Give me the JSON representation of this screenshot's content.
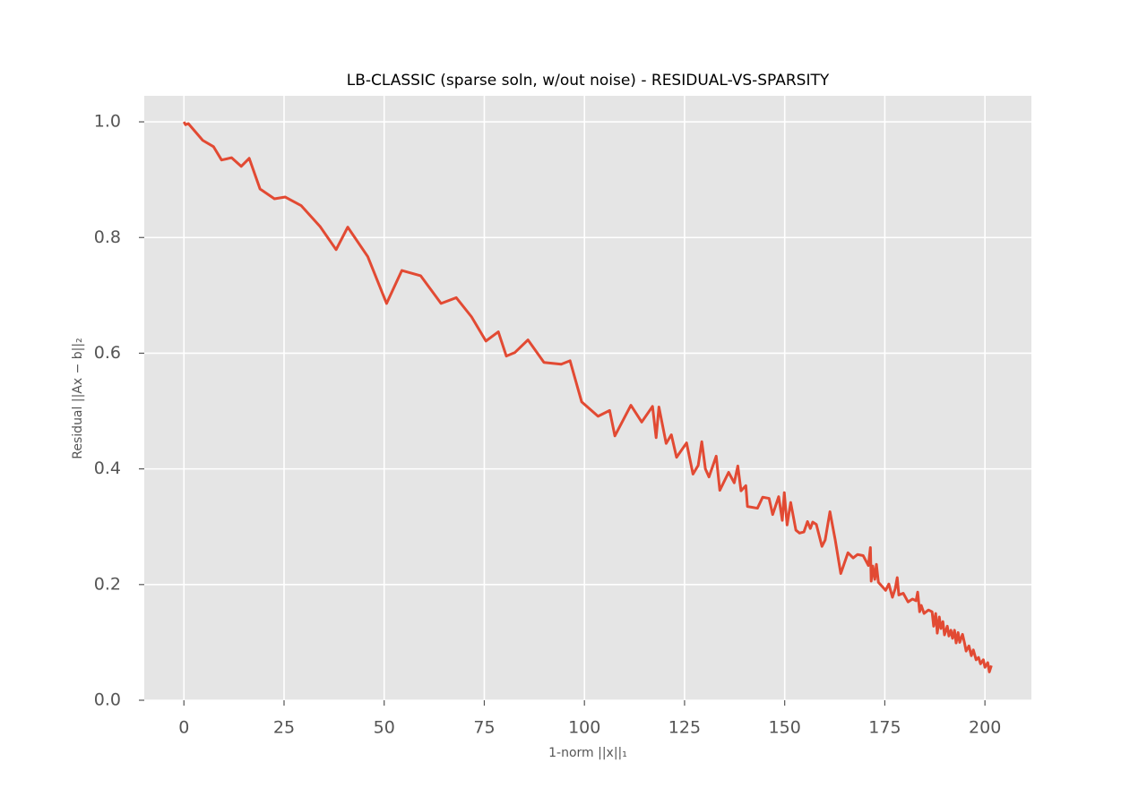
{
  "chart_data": {
    "type": "line",
    "title": "LB-CLASSIC (sparse soln, w/out noise) - RESIDUAL-VS-SPARSITY",
    "x_label": "1-norm ||x||₁",
    "y_label": "Residual ||Ax − b||₂",
    "color": "#e24a33",
    "grid": true,
    "xlim": [
      -9.9,
      211.6
    ],
    "ylim": [
      0,
      1.045
    ],
    "xticks": [
      0,
      25,
      50,
      75,
      100,
      125,
      150,
      175,
      200
    ],
    "yticks": [
      {
        "value": 0,
        "label": "0.0"
      },
      0.2,
      0.4,
      0.6,
      0.8,
      {
        "value": 1,
        "label": "1.0"
      }
    ],
    "x": [
      0,
      0.4,
      1.1,
      4.7,
      7.4,
      9.4,
      11.9,
      14.3,
      16.3,
      19,
      22.6,
      25.3,
      29.3,
      34,
      38,
      40.9,
      45.9,
      50.6,
      54.4,
      59.1,
      64.2,
      68,
      71.8,
      75.4,
      78.5,
      80.5,
      82.6,
      85.9,
      89.9,
      94.2,
      96.4,
      99.3,
      103.4,
      106.3,
      107.6,
      111.6,
      114.3,
      117,
      117.9,
      118.6,
      120.4,
      121.7,
      123,
      125.5,
      127.1,
      128.4,
      129.3,
      130.2,
      131.1,
      132.9,
      133.8,
      136,
      137.4,
      138.3,
      139.1,
      140.3,
      140.7,
      143.2,
      144.5,
      146.1,
      147,
      148.5,
      149.4,
      149.9,
      150.6,
      151.5,
      152.8,
      153.7,
      154.8,
      155.7,
      156.4,
      157,
      157.9,
      159.3,
      160.1,
      161.3,
      162.6,
      164,
      165.8,
      167.1,
      168.2,
      169.6,
      170.9,
      171.4,
      171.6,
      172,
      172.5,
      172.9,
      173.4,
      175.2,
      176,
      176.9,
      177.6,
      178.1,
      178.5,
      179.6,
      180.8,
      181.9,
      182.8,
      183.2,
      183.7,
      184.1,
      184.8,
      185.9,
      186.8,
      187.2,
      187.7,
      188.1,
      188.6,
      189,
      189.5,
      189.9,
      190.6,
      191,
      191.5,
      191.9,
      192.4,
      192.8,
      193.3,
      193.7,
      194.4,
      194.9,
      195.3,
      196,
      196.6,
      197.1,
      197.8,
      198.4,
      198.9,
      199.6,
      200,
      200.7,
      201.1,
      201.6
    ],
    "values": [
      1.0,
      0.995,
      0.997,
      0.968,
      0.957,
      0.934,
      0.938,
      0.923,
      0.937,
      0.884,
      0.867,
      0.87,
      0.855,
      0.819,
      0.779,
      0.818,
      0.767,
      0.686,
      0.743,
      0.734,
      0.686,
      0.696,
      0.663,
      0.621,
      0.637,
      0.595,
      0.601,
      0.623,
      0.584,
      0.581,
      0.587,
      0.516,
      0.491,
      0.501,
      0.457,
      0.51,
      0.481,
      0.508,
      0.454,
      0.507,
      0.444,
      0.459,
      0.42,
      0.445,
      0.391,
      0.406,
      0.447,
      0.4,
      0.386,
      0.422,
      0.363,
      0.394,
      0.376,
      0.405,
      0.362,
      0.371,
      0.335,
      0.332,
      0.351,
      0.349,
      0.321,
      0.352,
      0.311,
      0.359,
      0.303,
      0.342,
      0.294,
      0.289,
      0.291,
      0.309,
      0.297,
      0.308,
      0.304,
      0.266,
      0.277,
      0.326,
      0.278,
      0.219,
      0.255,
      0.246,
      0.252,
      0.25,
      0.233,
      0.264,
      0.206,
      0.232,
      0.209,
      0.235,
      0.204,
      0.19,
      0.201,
      0.178,
      0.193,
      0.212,
      0.182,
      0.185,
      0.17,
      0.175,
      0.172,
      0.187,
      0.153,
      0.164,
      0.15,
      0.156,
      0.153,
      0.128,
      0.15,
      0.116,
      0.144,
      0.124,
      0.136,
      0.113,
      0.128,
      0.111,
      0.121,
      0.107,
      0.121,
      0.099,
      0.117,
      0.1,
      0.114,
      0.099,
      0.085,
      0.094,
      0.077,
      0.087,
      0.07,
      0.074,
      0.063,
      0.07,
      0.057,
      0.065,
      0.049,
      0.06
    ]
  }
}
